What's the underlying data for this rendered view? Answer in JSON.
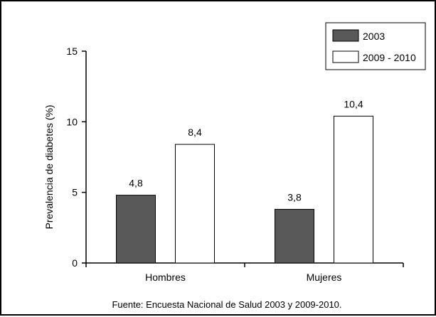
{
  "chart_data": {
    "type": "bar",
    "categories": [
      "Hombres",
      "Mujeres"
    ],
    "series": [
      {
        "name": "2003",
        "values": [
          4.8,
          3.8
        ],
        "labels": [
          "4,8",
          "3,8"
        ],
        "color": "#595959"
      },
      {
        "name": "2009 - 2010",
        "values": [
          8.4,
          10.4
        ],
        "labels": [
          "8,4",
          "10,4"
        ],
        "color": "#ffffff"
      }
    ],
    "ylabel": "Prevalencia de diabetes (%)",
    "xlabel": "",
    "ylim": [
      0,
      15
    ],
    "yticks": [
      0,
      5,
      10,
      15
    ],
    "legend_position": "top-right",
    "grid": false
  },
  "source_note": "Fuente: Encuesta Nacional de Salud 2003 y 2009-2010."
}
